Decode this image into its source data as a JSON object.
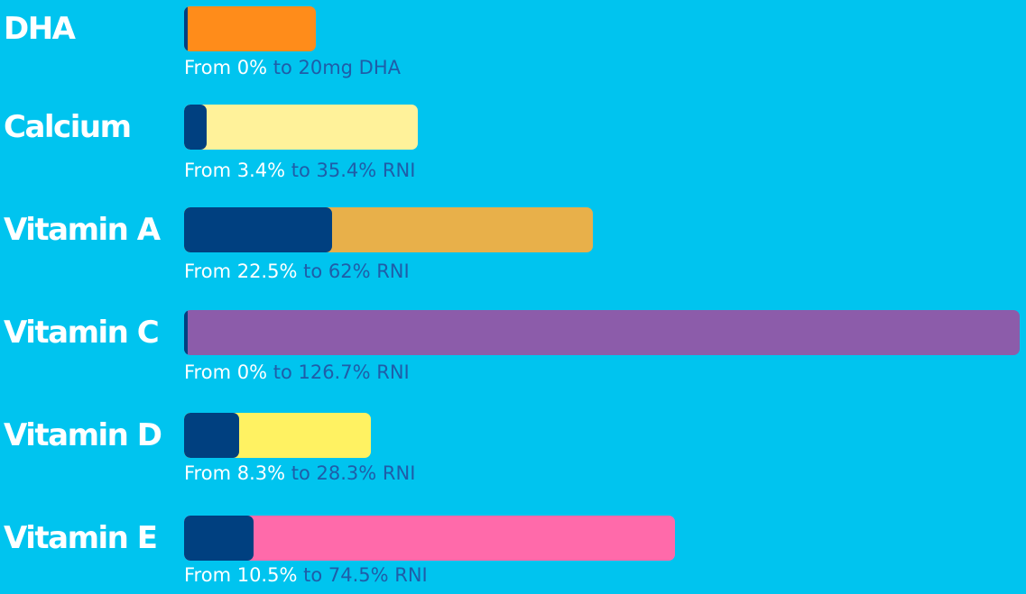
{
  "chart_data": {
    "type": "bar",
    "orientation": "horizontal",
    "categories": [
      "DHA",
      "Calcium",
      "Vitamin A",
      "Vitamin C",
      "Vitamin D",
      "Vitamin E"
    ],
    "series": [
      {
        "name": "From",
        "values": [
          0,
          3.4,
          22.5,
          0,
          8.3,
          10.5
        ]
      },
      {
        "name": "To",
        "values": [
          20,
          35.4,
          62,
          126.7,
          28.3,
          74.5
        ]
      }
    ],
    "units": [
      "mg DHA",
      "% RNI",
      "% RNI",
      "% RNI",
      "% RNI",
      "% RNI"
    ],
    "colors": [
      "#ff8c1a",
      "#fff29a",
      "#e8b04a",
      "#8c5caa",
      "#fff262",
      "#ff6aaa"
    ],
    "from_color": "#004080",
    "rows": [
      {
        "label": "DHA",
        "from_text": "From 0%",
        "to_text": "to 20mg DHA"
      },
      {
        "label": "Calcium",
        "from_text": "From 3.4%",
        "to_text": "to 35.4% RNI"
      },
      {
        "label": "Vitamin A",
        "from_text": "From 22.5%",
        "to_text": "to 62% RNI"
      },
      {
        "label": "Vitamin C",
        "from_text": "From 0%",
        "to_text": "to 126.7% RNI"
      },
      {
        "label": "Vitamin D",
        "from_text": "From 8.3%",
        "to_text": "to 28.3% RNI"
      },
      {
        "label": "Vitamin E",
        "from_text": "From 10.5%",
        "to_text": "to 74.5% RNI"
      }
    ]
  }
}
